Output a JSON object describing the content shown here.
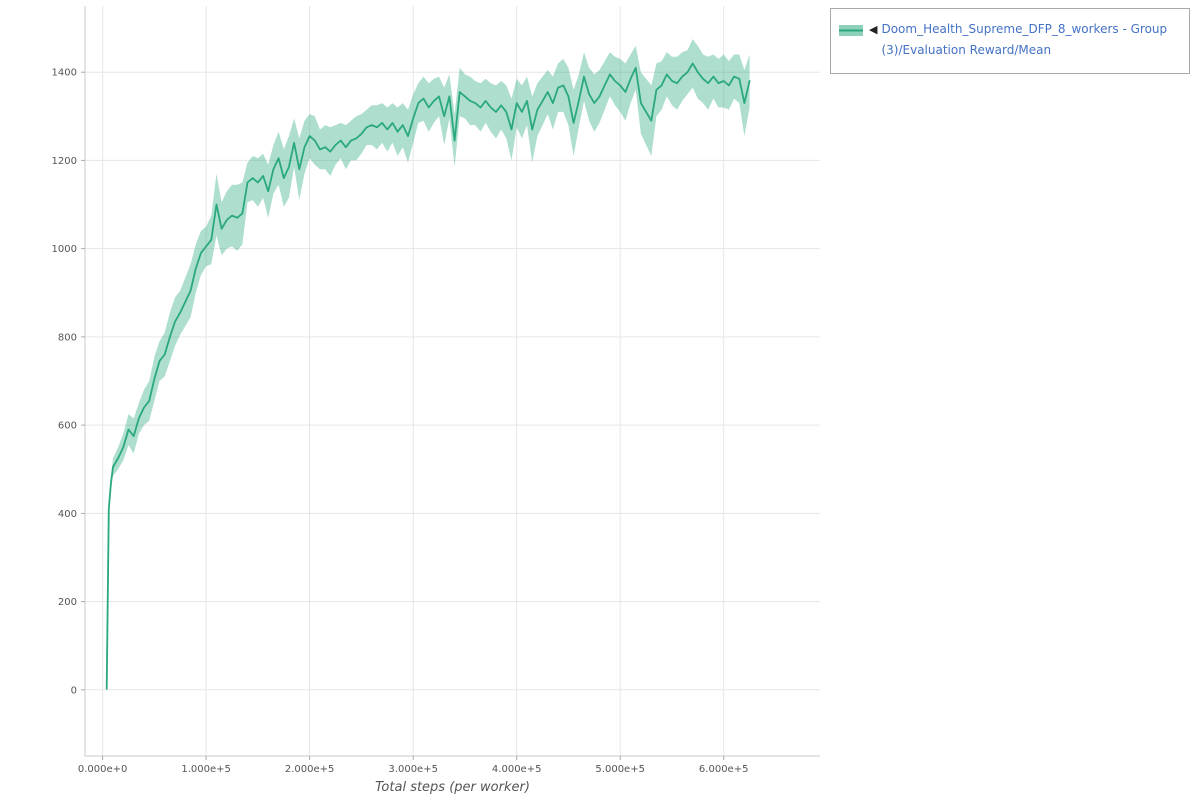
{
  "page": {
    "background": "#ffffff"
  },
  "legend": {
    "collapse_icon": "◀",
    "series_label": "Doom_Health_Supreme_DFP_8_workers - Group(3)/Evaluation Reward/Mean",
    "text_color": "#4472c4"
  },
  "chart_data": {
    "type": "line",
    "title": "",
    "xlabel": "Total steps (per worker)",
    "ylabel": "",
    "grid": true,
    "legend_position": "top-right",
    "xlim": [
      -17000,
      693000
    ],
    "ylim": [
      -150,
      1550
    ],
    "x_ticks": {
      "values": [
        0,
        100000,
        200000,
        300000,
        400000,
        500000,
        600000
      ],
      "labels": [
        "0.000e+0",
        "1.000e+5",
        "2.000e+5",
        "3.000e+5",
        "4.000e+5",
        "5.000e+5",
        "6.000e+5"
      ]
    },
    "y_ticks": {
      "values": [
        0,
        200,
        400,
        600,
        800,
        1000,
        1200,
        1400
      ],
      "labels": [
        "0",
        "200",
        "400",
        "600",
        "800",
        "1000",
        "1200",
        "1400"
      ]
    },
    "series": [
      {
        "name": "Doom_Health_Supreme_DFP_8_workers - Group(3)/Evaluation Reward/Mean",
        "color": "#2aa87e",
        "band_color": "#2aa87e",
        "band_opacity": 0.38,
        "x": [
          4000,
          6000,
          8000,
          10000,
          15000,
          20000,
          25000,
          30000,
          35000,
          40000,
          45000,
          50000,
          55000,
          60000,
          65000,
          70000,
          75000,
          80000,
          85000,
          90000,
          95000,
          100000,
          105000,
          110000,
          115000,
          120000,
          125000,
          130000,
          135000,
          140000,
          145000,
          150000,
          155000,
          160000,
          165000,
          170000,
          175000,
          180000,
          185000,
          190000,
          195000,
          200000,
          205000,
          210000,
          215000,
          220000,
          225000,
          230000,
          235000,
          240000,
          245000,
          250000,
          255000,
          260000,
          265000,
          270000,
          275000,
          280000,
          285000,
          290000,
          295000,
          300000,
          305000,
          310000,
          315000,
          320000,
          325000,
          330000,
          335000,
          340000,
          345000,
          350000,
          355000,
          360000,
          365000,
          370000,
          375000,
          380000,
          385000,
          390000,
          395000,
          400000,
          405000,
          410000,
          415000,
          420000,
          425000,
          430000,
          435000,
          440000,
          445000,
          450000,
          455000,
          460000,
          465000,
          470000,
          475000,
          480000,
          485000,
          490000,
          495000,
          500000,
          505000,
          510000,
          515000,
          520000,
          525000,
          530000,
          535000,
          540000,
          545000,
          550000,
          555000,
          560000,
          565000,
          570000,
          575000,
          580000,
          585000,
          590000,
          595000,
          600000,
          605000,
          610000,
          615000,
          620000,
          625000
        ],
        "mean": [
          2,
          410,
          468,
          505,
          525,
          550,
          590,
          575,
          615,
          640,
          655,
          705,
          745,
          760,
          800,
          835,
          855,
          880,
          905,
          955,
          990,
          1005,
          1020,
          1100,
          1045,
          1065,
          1075,
          1070,
          1080,
          1150,
          1160,
          1150,
          1165,
          1130,
          1180,
          1205,
          1160,
          1185,
          1240,
          1180,
          1230,
          1255,
          1245,
          1225,
          1230,
          1220,
          1235,
          1245,
          1230,
          1245,
          1250,
          1260,
          1275,
          1280,
          1275,
          1285,
          1270,
          1285,
          1265,
          1280,
          1255,
          1295,
          1330,
          1340,
          1320,
          1335,
          1345,
          1300,
          1345,
          1245,
          1355,
          1345,
          1335,
          1330,
          1320,
          1335,
          1320,
          1310,
          1325,
          1310,
          1270,
          1330,
          1310,
          1335,
          1270,
          1315,
          1335,
          1355,
          1330,
          1365,
          1370,
          1345,
          1285,
          1335,
          1390,
          1350,
          1330,
          1345,
          1370,
          1395,
          1380,
          1370,
          1355,
          1385,
          1410,
          1330,
          1310,
          1290,
          1360,
          1370,
          1395,
          1380,
          1375,
          1390,
          1400,
          1420,
          1400,
          1385,
          1375,
          1390,
          1375,
          1380,
          1370,
          1390,
          1385,
          1330,
          1380
        ],
        "band_half_width": [
          0,
          10,
          15,
          20,
          25,
          30,
          35,
          40,
          35,
          40,
          45,
          50,
          45,
          50,
          55,
          55,
          50,
          55,
          60,
          55,
          50,
          45,
          55,
          70,
          60,
          65,
          70,
          75,
          70,
          45,
          50,
          55,
          50,
          60,
          55,
          60,
          65,
          70,
          55,
          70,
          60,
          50,
          55,
          45,
          50,
          55,
          45,
          40,
          50,
          45,
          50,
          45,
          40,
          45,
          50,
          45,
          50,
          45,
          55,
          50,
          60,
          55,
          45,
          50,
          55,
          50,
          45,
          65,
          50,
          60,
          55,
          50,
          55,
          50,
          55,
          50,
          55,
          60,
          55,
          60,
          70,
          55,
          60,
          55,
          75,
          60,
          55,
          50,
          60,
          55,
          60,
          65,
          75,
          60,
          55,
          60,
          65,
          60,
          55,
          50,
          55,
          60,
          65,
          55,
          50,
          70,
          75,
          80,
          60,
          55,
          50,
          55,
          60,
          55,
          50,
          55,
          60,
          55,
          60,
          50,
          55,
          60,
          55,
          50,
          55,
          75,
          60
        ]
      }
    ]
  }
}
